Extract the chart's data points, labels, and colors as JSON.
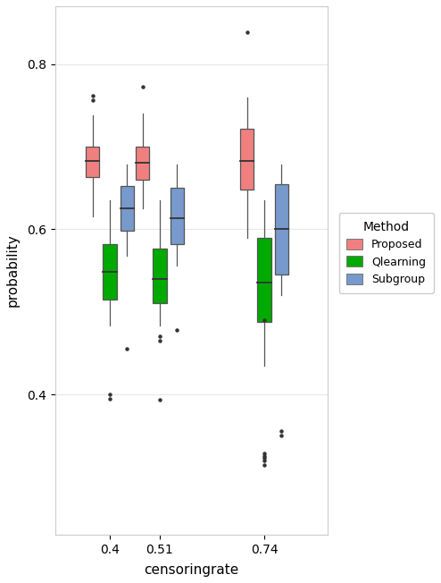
{
  "title": "",
  "xlabel": "censoringrate",
  "ylabel": "probability",
  "xlim": [
    0.28,
    0.88
  ],
  "ylim": [
    0.23,
    0.87
  ],
  "yticks": [
    0.4,
    0.6,
    0.8
  ],
  "xtick_labels": [
    "0.4",
    "0.51",
    "0.74"
  ],
  "xtick_positions": [
    0.4,
    0.51,
    0.74
  ],
  "background_color": "#ffffff",
  "panel_color": "#ffffff",
  "grid_color": "#e8e8e8",
  "methods": [
    "Proposed",
    "Qlearning",
    "Subgroup"
  ],
  "colors": [
    "#F08080",
    "#00AA00",
    "#7799CC"
  ],
  "legend_colors": [
    "#F08080",
    "#00AA00",
    "#7799CC"
  ],
  "box_width": 0.03,
  "group_offsets": [
    -0.038,
    0.0,
    0.038
  ],
  "censor_rates": [
    0.4,
    0.51,
    0.74
  ],
  "boxes": {
    "Proposed": {
      "0.4": {
        "q1": 0.663,
        "median": 0.683,
        "q3": 0.7,
        "whislo": 0.615,
        "whishi": 0.738,
        "fliers_low": [],
        "fliers_high": [
          0.756,
          0.762
        ]
      },
      "0.51": {
        "q1": 0.66,
        "median": 0.68,
        "q3": 0.7,
        "whislo": 0.625,
        "whishi": 0.74,
        "fliers_low": [],
        "fliers_high": [
          0.773
        ]
      },
      "0.74": {
        "q1": 0.648,
        "median": 0.683,
        "q3": 0.722,
        "whislo": 0.59,
        "whishi": 0.76,
        "fliers_low": [],
        "fliers_high": [
          0.838
        ]
      }
    },
    "Qlearning": {
      "0.4": {
        "q1": 0.515,
        "median": 0.548,
        "q3": 0.582,
        "whislo": 0.483,
        "whishi": 0.635,
        "fliers_low": [
          0.395,
          0.4
        ],
        "fliers_high": []
      },
      "0.51": {
        "q1": 0.51,
        "median": 0.54,
        "q3": 0.577,
        "whislo": 0.483,
        "whishi": 0.635,
        "fliers_low": [
          0.465,
          0.47,
          0.393
        ],
        "fliers_high": []
      },
      "0.74": {
        "q1": 0.488,
        "median": 0.535,
        "q3": 0.59,
        "whislo": 0.435,
        "whishi": 0.635,
        "fliers_low": [
          0.315,
          0.32,
          0.323,
          0.325,
          0.328,
          0.49
        ],
        "fliers_high": []
      }
    },
    "Subgroup": {
      "0.4": {
        "q1": 0.598,
        "median": 0.625,
        "q3": 0.652,
        "whislo": 0.568,
        "whishi": 0.678,
        "fliers_low": [
          0.455
        ],
        "fliers_high": []
      },
      "0.51": {
        "q1": 0.582,
        "median": 0.613,
        "q3": 0.65,
        "whislo": 0.556,
        "whishi": 0.678,
        "fliers_low": [
          0.478
        ],
        "fliers_high": []
      },
      "0.74": {
        "q1": 0.545,
        "median": 0.6,
        "q3": 0.655,
        "whislo": 0.52,
        "whishi": 0.678,
        "fliers_low": [
          0.35,
          0.356
        ],
        "fliers_high": []
      }
    }
  }
}
